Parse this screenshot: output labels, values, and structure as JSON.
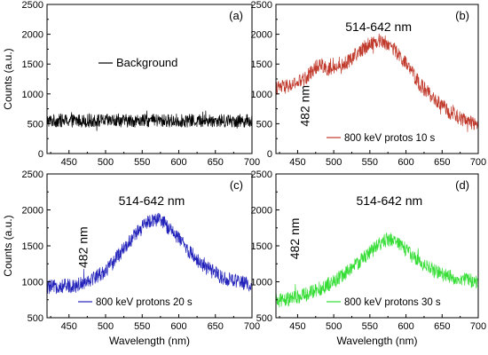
{
  "chart_data": [
    {
      "id": "a",
      "type": "line",
      "panel_label": "(a)",
      "xlabel": "",
      "ylabel": "Counts (a.u.)",
      "xlim": [
        420,
        700
      ],
      "ylim": [
        0,
        2500
      ],
      "x_ticks": [
        "450",
        "500",
        "550",
        "600",
        "650",
        "700"
      ],
      "y_ticks": [
        "0",
        "500",
        "1000",
        "1500",
        "2000",
        "2500"
      ],
      "legend": "Background",
      "legend_position": "center",
      "annotations": [],
      "series": [
        {
          "name": "Background",
          "color": "#000000",
          "profile": {
            "x": [
              420,
              700
            ],
            "y": [
              550,
              550
            ]
          },
          "noise_amplitude": 110
        }
      ]
    },
    {
      "id": "b",
      "type": "line",
      "panel_label": "(b)",
      "xlabel": "",
      "ylabel": "",
      "xlim": [
        420,
        700
      ],
      "ylim": [
        0,
        2500
      ],
      "x_ticks": [
        "450",
        "500",
        "550",
        "600",
        "650",
        "700"
      ],
      "y_ticks": [
        "0",
        "500",
        "1000",
        "1500",
        "2000",
        "2500"
      ],
      "legend": "800 keV protos 10 s",
      "legend_position": "bottom-right",
      "annotations": [
        {
          "text": "514-642 nm",
          "x": 562,
          "y": 2050,
          "rotate": false
        },
        {
          "text": "482 nm",
          "x": 466,
          "y": 800,
          "rotate": true
        }
      ],
      "series": [
        {
          "name": "800 keV protos 10 s",
          "color": "#c0392b",
          "profile": {
            "x": [
              420,
              440,
              460,
              475,
              482,
              495,
              510,
              530,
              550,
              565,
              580,
              600,
              620,
              640,
              660,
              680,
              700
            ],
            "y": [
              1100,
              1130,
              1250,
              1450,
              1500,
              1400,
              1450,
              1650,
              1850,
              1900,
              1800,
              1500,
              1150,
              900,
              700,
              550,
              500
            ]
          },
          "noise_amplitude": 120
        }
      ]
    },
    {
      "id": "c",
      "type": "line",
      "panel_label": "(c)",
      "xlabel": "Wavelength (nm)",
      "ylabel": "Counts (a.u.)",
      "xlim": [
        420,
        700
      ],
      "ylim": [
        500,
        2500
      ],
      "x_ticks": [
        "450",
        "500",
        "550",
        "600",
        "650",
        "700"
      ],
      "y_ticks": [
        "500",
        "1000",
        "1500",
        "2000",
        "2500"
      ],
      "legend": "800 keV protons 20 s",
      "legend_position": "bottom-left",
      "annotations": [
        {
          "text": "514-642 nm",
          "x": 563,
          "y": 2070,
          "rotate": false
        },
        {
          "text": "482 nm",
          "x": 475,
          "y": 1480,
          "rotate": true
        }
      ],
      "series": [
        {
          "name": "800 keV protons 20 s",
          "color": "#2222bb",
          "profile": {
            "x": [
              420,
              440,
              460,
              480,
              500,
              520,
              540,
              560,
              570,
              580,
              600,
              620,
              640,
              660,
              680,
              700
            ],
            "y": [
              920,
              940,
              950,
              1040,
              1150,
              1400,
              1650,
              1850,
              1870,
              1820,
              1600,
              1350,
              1180,
              1060,
              1000,
              960
            ]
          },
          "noise_amplitude": 100
        }
      ]
    },
    {
      "id": "d",
      "type": "line",
      "panel_label": "(d)",
      "xlabel": "Wavelength (nm)",
      "ylabel": "",
      "xlim": [
        420,
        700
      ],
      "ylim": [
        500,
        2500
      ],
      "x_ticks": [
        "450",
        "500",
        "550",
        "600",
        "650",
        "700"
      ],
      "y_ticks": [
        "500",
        "1000",
        "1500",
        "2000",
        "2500"
      ],
      "legend": "800 keV protons 30 s",
      "legend_position": "bottom-right",
      "annotations": [
        {
          "text": "514-642 nm",
          "x": 577,
          "y": 2070,
          "rotate": false
        },
        {
          "text": "482 nm",
          "x": 452,
          "y": 1600,
          "rotate": true
        }
      ],
      "series": [
        {
          "name": "800 keV protons 30 s",
          "color": "#33dd33",
          "profile": {
            "x": [
              420,
              440,
              460,
              480,
              500,
              520,
              540,
              560,
              575,
              590,
              610,
              630,
              650,
              670,
              700
            ],
            "y": [
              730,
              760,
              820,
              900,
              1000,
              1150,
              1320,
              1500,
              1600,
              1540,
              1350,
              1200,
              1100,
              1050,
              1000
            ]
          },
          "noise_amplitude": 100
        }
      ]
    }
  ]
}
